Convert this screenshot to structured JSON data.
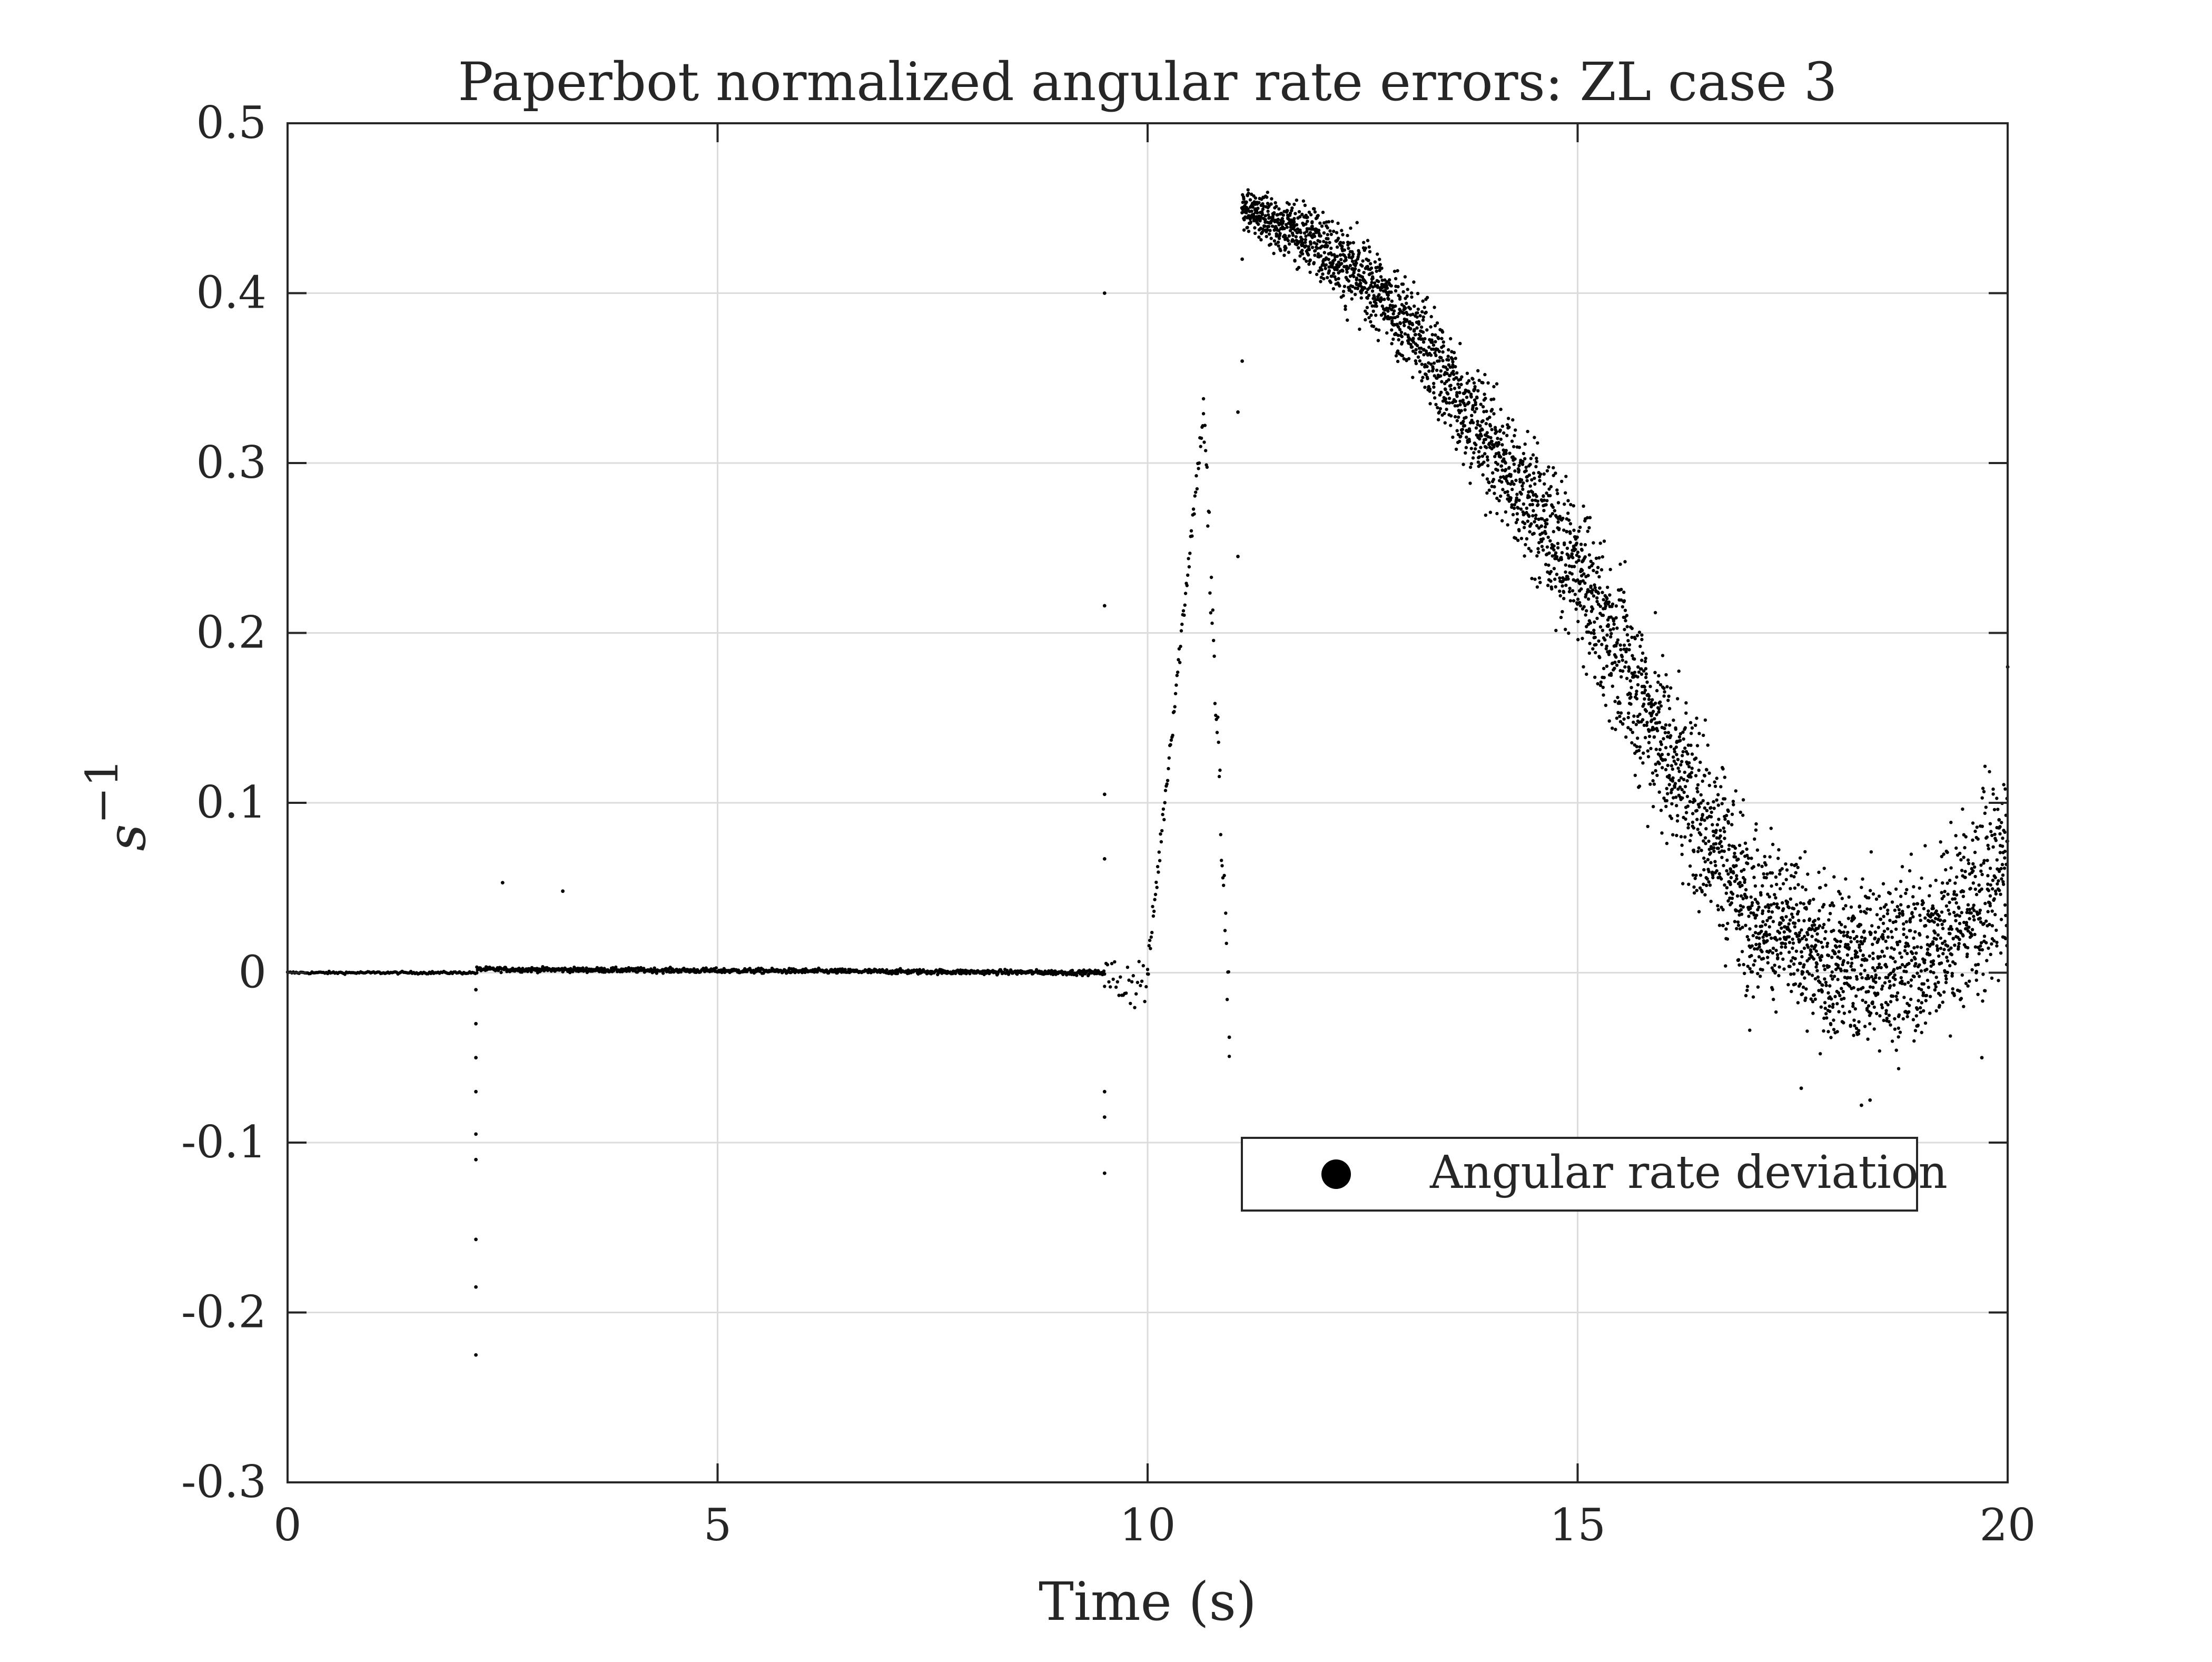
{
  "chart_data": {
    "type": "scatter",
    "title": "Paperbot normalized angular rate errors: ZL case 3",
    "xlabel": "Time (s)",
    "ylabel_base": "s",
    "ylabel_exp": "−1",
    "xlim": [
      0,
      20
    ],
    "ylim": [
      -0.3,
      0.5
    ],
    "xticks": [
      0,
      5,
      10,
      15,
      20
    ],
    "xtick_labels": [
      "0",
      "5",
      "10",
      "15",
      "20"
    ],
    "yticks": [
      -0.3,
      -0.2,
      -0.1,
      0,
      0.1,
      0.2,
      0.3,
      0.4,
      0.5
    ],
    "ytick_labels": [
      "-0.3",
      "-0.2",
      "-0.1",
      "0",
      "0.1",
      "0.2",
      "0.3",
      "0.4",
      "0.5"
    ],
    "grid": true,
    "legend": {
      "position": "lower-right",
      "entries": [
        "Angular rate deviation"
      ]
    },
    "marker_color": "#000000",
    "series": [
      {
        "name": "Angular rate deviation",
        "segments": [
          {
            "t0": 0.0,
            "t1": 2.2,
            "shape": "constant",
            "center": 0.0,
            "spread": 0.0005
          },
          {
            "t0": 2.2,
            "t1": 9.5,
            "shape": "linear",
            "start": 0.002,
            "end": 0.0,
            "spread": 0.001
          },
          {
            "t0": 9.5,
            "t1": 10.0,
            "shape": "constant",
            "center": -0.005,
            "spread": 0.012
          },
          {
            "t0": 10.0,
            "t1": 10.65,
            "shape": "linear",
            "start": 0.0,
            "end": 0.33,
            "spread": 0.006
          },
          {
            "t0": 10.65,
            "t1": 10.95,
            "shape": "linear",
            "start": 0.33,
            "end": -0.03,
            "spread": 0.02
          },
          {
            "t0": 11.1,
            "t1": 20.0,
            "shape": "curve",
            "knots": [
              [
                11.1,
                0.45
              ],
              [
                12.0,
                0.43
              ],
              [
                13.0,
                0.385
              ],
              [
                14.0,
                0.31
              ],
              [
                15.0,
                0.235
              ],
              [
                16.0,
                0.135
              ],
              [
                17.0,
                0.04
              ],
              [
                18.0,
                0.005
              ],
              [
                19.0,
                0.01
              ],
              [
                20.0,
                0.06
              ]
            ],
            "spread_knots": [
              [
                11.1,
                0.008
              ],
              [
                13.0,
                0.02
              ],
              [
                15.0,
                0.03
              ],
              [
                16.5,
                0.04
              ],
              [
                17.5,
                0.03
              ],
              [
                20.0,
                0.04
              ]
            ]
          }
        ],
        "outliers": [
          [
            2.19,
            -0.225
          ],
          [
            2.19,
            -0.185
          ],
          [
            2.19,
            -0.157
          ],
          [
            2.19,
            -0.11
          ],
          [
            2.19,
            -0.095
          ],
          [
            2.19,
            -0.07
          ],
          [
            2.19,
            -0.05
          ],
          [
            2.19,
            -0.03
          ],
          [
            2.19,
            -0.01
          ],
          [
            2.5,
            0.053
          ],
          [
            3.2,
            0.048
          ],
          [
            9.5,
            0.4
          ],
          [
            9.5,
            0.216
          ],
          [
            9.5,
            0.105
          ],
          [
            9.5,
            0.067
          ],
          [
            9.5,
            -0.118
          ],
          [
            9.5,
            -0.085
          ],
          [
            9.5,
            -0.07
          ],
          [
            10.95,
            -0.038
          ],
          [
            11.05,
            0.245
          ],
          [
            11.05,
            0.33
          ],
          [
            11.1,
            0.42
          ],
          [
            11.1,
            0.36
          ],
          [
            17.6,
            -0.068
          ],
          [
            18.3,
            -0.078
          ],
          [
            18.4,
            -0.075
          ],
          [
            19.7,
            -0.05
          ],
          [
            20.0,
            0.18
          ],
          [
            19.9,
            0.09
          ]
        ]
      }
    ]
  }
}
